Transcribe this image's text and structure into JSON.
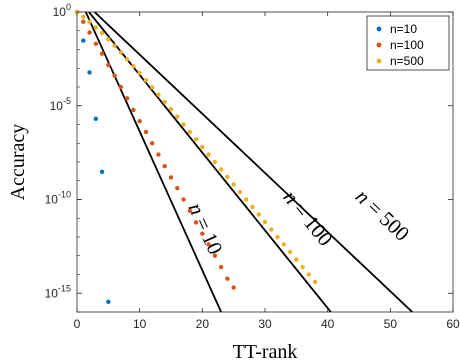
{
  "chart_data": {
    "type": "scatter",
    "title": "",
    "xlabel": "TT-rank",
    "ylabel": "Accuracy",
    "xlim": [
      0,
      60
    ],
    "ylim": [
      1e-16,
      1
    ],
    "yscale": "log",
    "grid": false,
    "legend_position": "top-right",
    "x_ticks": [
      {
        "value": 0,
        "label": "0"
      },
      {
        "value": 10,
        "label": "10"
      },
      {
        "value": 20,
        "label": "20"
      },
      {
        "value": 30,
        "label": "30"
      },
      {
        "value": 40,
        "label": "40"
      },
      {
        "value": 50,
        "label": "50"
      },
      {
        "value": 60,
        "label": "60"
      }
    ],
    "y_ticks": [
      {
        "value": 1,
        "base": "10",
        "exp": "0"
      },
      {
        "value": 1e-05,
        "base": "10",
        "exp": "-5"
      },
      {
        "value": 1e-10,
        "base": "10",
        "exp": "-10"
      },
      {
        "value": 1e-15,
        "base": "10",
        "exp": "-15"
      }
    ],
    "series": [
      {
        "name": "n=10",
        "color": "#0072BD",
        "points": [
          {
            "x": 0,
            "y": 1
          },
          {
            "x": 1,
            "y": 0.03
          },
          {
            "x": 2,
            "y": 0.0006
          },
          {
            "x": 3,
            "y": 2e-06
          },
          {
            "x": 4,
            "y": 3e-09
          },
          {
            "x": 5,
            "y": 3.5e-16
          }
        ]
      },
      {
        "name": "n=100",
        "color": "#D95319",
        "points": [
          {
            "x": 0,
            "y": 1
          },
          {
            "x": 1,
            "y": 0.3
          },
          {
            "x": 2,
            "y": 0.08
          },
          {
            "x": 3,
            "y": 0.02
          },
          {
            "x": 4,
            "y": 0.006
          },
          {
            "x": 5,
            "y": 0.0015
          },
          {
            "x": 6,
            "y": 0.0004
          },
          {
            "x": 7,
            "y": 0.0001
          },
          {
            "x": 8,
            "y": 2.5e-05
          },
          {
            "x": 9,
            "y": 6e-06
          },
          {
            "x": 10,
            "y": 1.5e-06
          },
          {
            "x": 11,
            "y": 4e-07
          },
          {
            "x": 12,
            "y": 1e-07
          },
          {
            "x": 13,
            "y": 2.5e-08
          },
          {
            "x": 14,
            "y": 6e-09
          },
          {
            "x": 15,
            "y": 1.5e-09
          },
          {
            "x": 16,
            "y": 4e-10
          },
          {
            "x": 17,
            "y": 1e-10
          },
          {
            "x": 18,
            "y": 2.5e-11
          },
          {
            "x": 19,
            "y": 6e-12
          },
          {
            "x": 20,
            "y": 1.5e-12
          },
          {
            "x": 21,
            "y": 4e-13
          },
          {
            "x": 22,
            "y": 1e-13
          },
          {
            "x": 23,
            "y": 2.5e-14
          },
          {
            "x": 24,
            "y": 6e-15
          },
          {
            "x": 25,
            "y": 2e-15
          }
        ]
      },
      {
        "name": "n=500",
        "color": "#EDB120",
        "points": [
          {
            "x": 0,
            "y": 1
          },
          {
            "x": 1,
            "y": 0.55
          },
          {
            "x": 2,
            "y": 0.3
          },
          {
            "x": 3,
            "y": 0.15
          },
          {
            "x": 4,
            "y": 0.075
          },
          {
            "x": 5,
            "y": 0.035
          },
          {
            "x": 6,
            "y": 0.016
          },
          {
            "x": 7,
            "y": 0.007
          },
          {
            "x": 8,
            "y": 0.003
          },
          {
            "x": 9,
            "y": 0.0013
          },
          {
            "x": 10,
            "y": 0.00055
          },
          {
            "x": 11,
            "y": 0.00023
          },
          {
            "x": 12,
            "y": 9.5e-05
          },
          {
            "x": 13,
            "y": 3.9e-05
          },
          {
            "x": 14,
            "y": 1.6e-05
          },
          {
            "x": 15,
            "y": 6.5e-06
          },
          {
            "x": 16,
            "y": 2.6e-06
          },
          {
            "x": 17,
            "y": 1e-06
          },
          {
            "x": 18,
            "y": 4e-07
          },
          {
            "x": 19,
            "y": 1.6e-07
          },
          {
            "x": 20,
            "y": 6.3e-08
          },
          {
            "x": 21,
            "y": 2.5e-08
          },
          {
            "x": 22,
            "y": 1e-08
          },
          {
            "x": 23,
            "y": 4e-09
          },
          {
            "x": 24,
            "y": 1.6e-09
          },
          {
            "x": 25,
            "y": 6.3e-10
          },
          {
            "x": 26,
            "y": 2.5e-10
          },
          {
            "x": 27,
            "y": 1e-10
          },
          {
            "x": 28,
            "y": 4e-11
          },
          {
            "x": 29,
            "y": 1.6e-11
          },
          {
            "x": 30,
            "y": 6.3e-12
          },
          {
            "x": 31,
            "y": 2.5e-12
          },
          {
            "x": 32,
            "y": 1e-12
          },
          {
            "x": 33,
            "y": 4e-13
          },
          {
            "x": 34,
            "y": 1.6e-13
          },
          {
            "x": 35,
            "y": 6.3e-14
          },
          {
            "x": 36,
            "y": 2.5e-14
          },
          {
            "x": 37,
            "y": 1e-14
          },
          {
            "x": 38,
            "y": 4e-15
          }
        ]
      }
    ],
    "bound_lines": [
      {
        "label_var": "n",
        "label_eq": "= 10",
        "x1": 1.4,
        "y1": 1,
        "x2": 23.0,
        "y2": 1e-16
      },
      {
        "label_var": "n",
        "label_eq": "= 100",
        "x1": 1.9,
        "y1": 1,
        "x2": 40.5,
        "y2": 1e-16
      },
      {
        "label_var": "n",
        "label_eq": "= 500",
        "x1": 2.8,
        "y1": 1,
        "x2": 53.5,
        "y2": 1e-16
      }
    ]
  }
}
